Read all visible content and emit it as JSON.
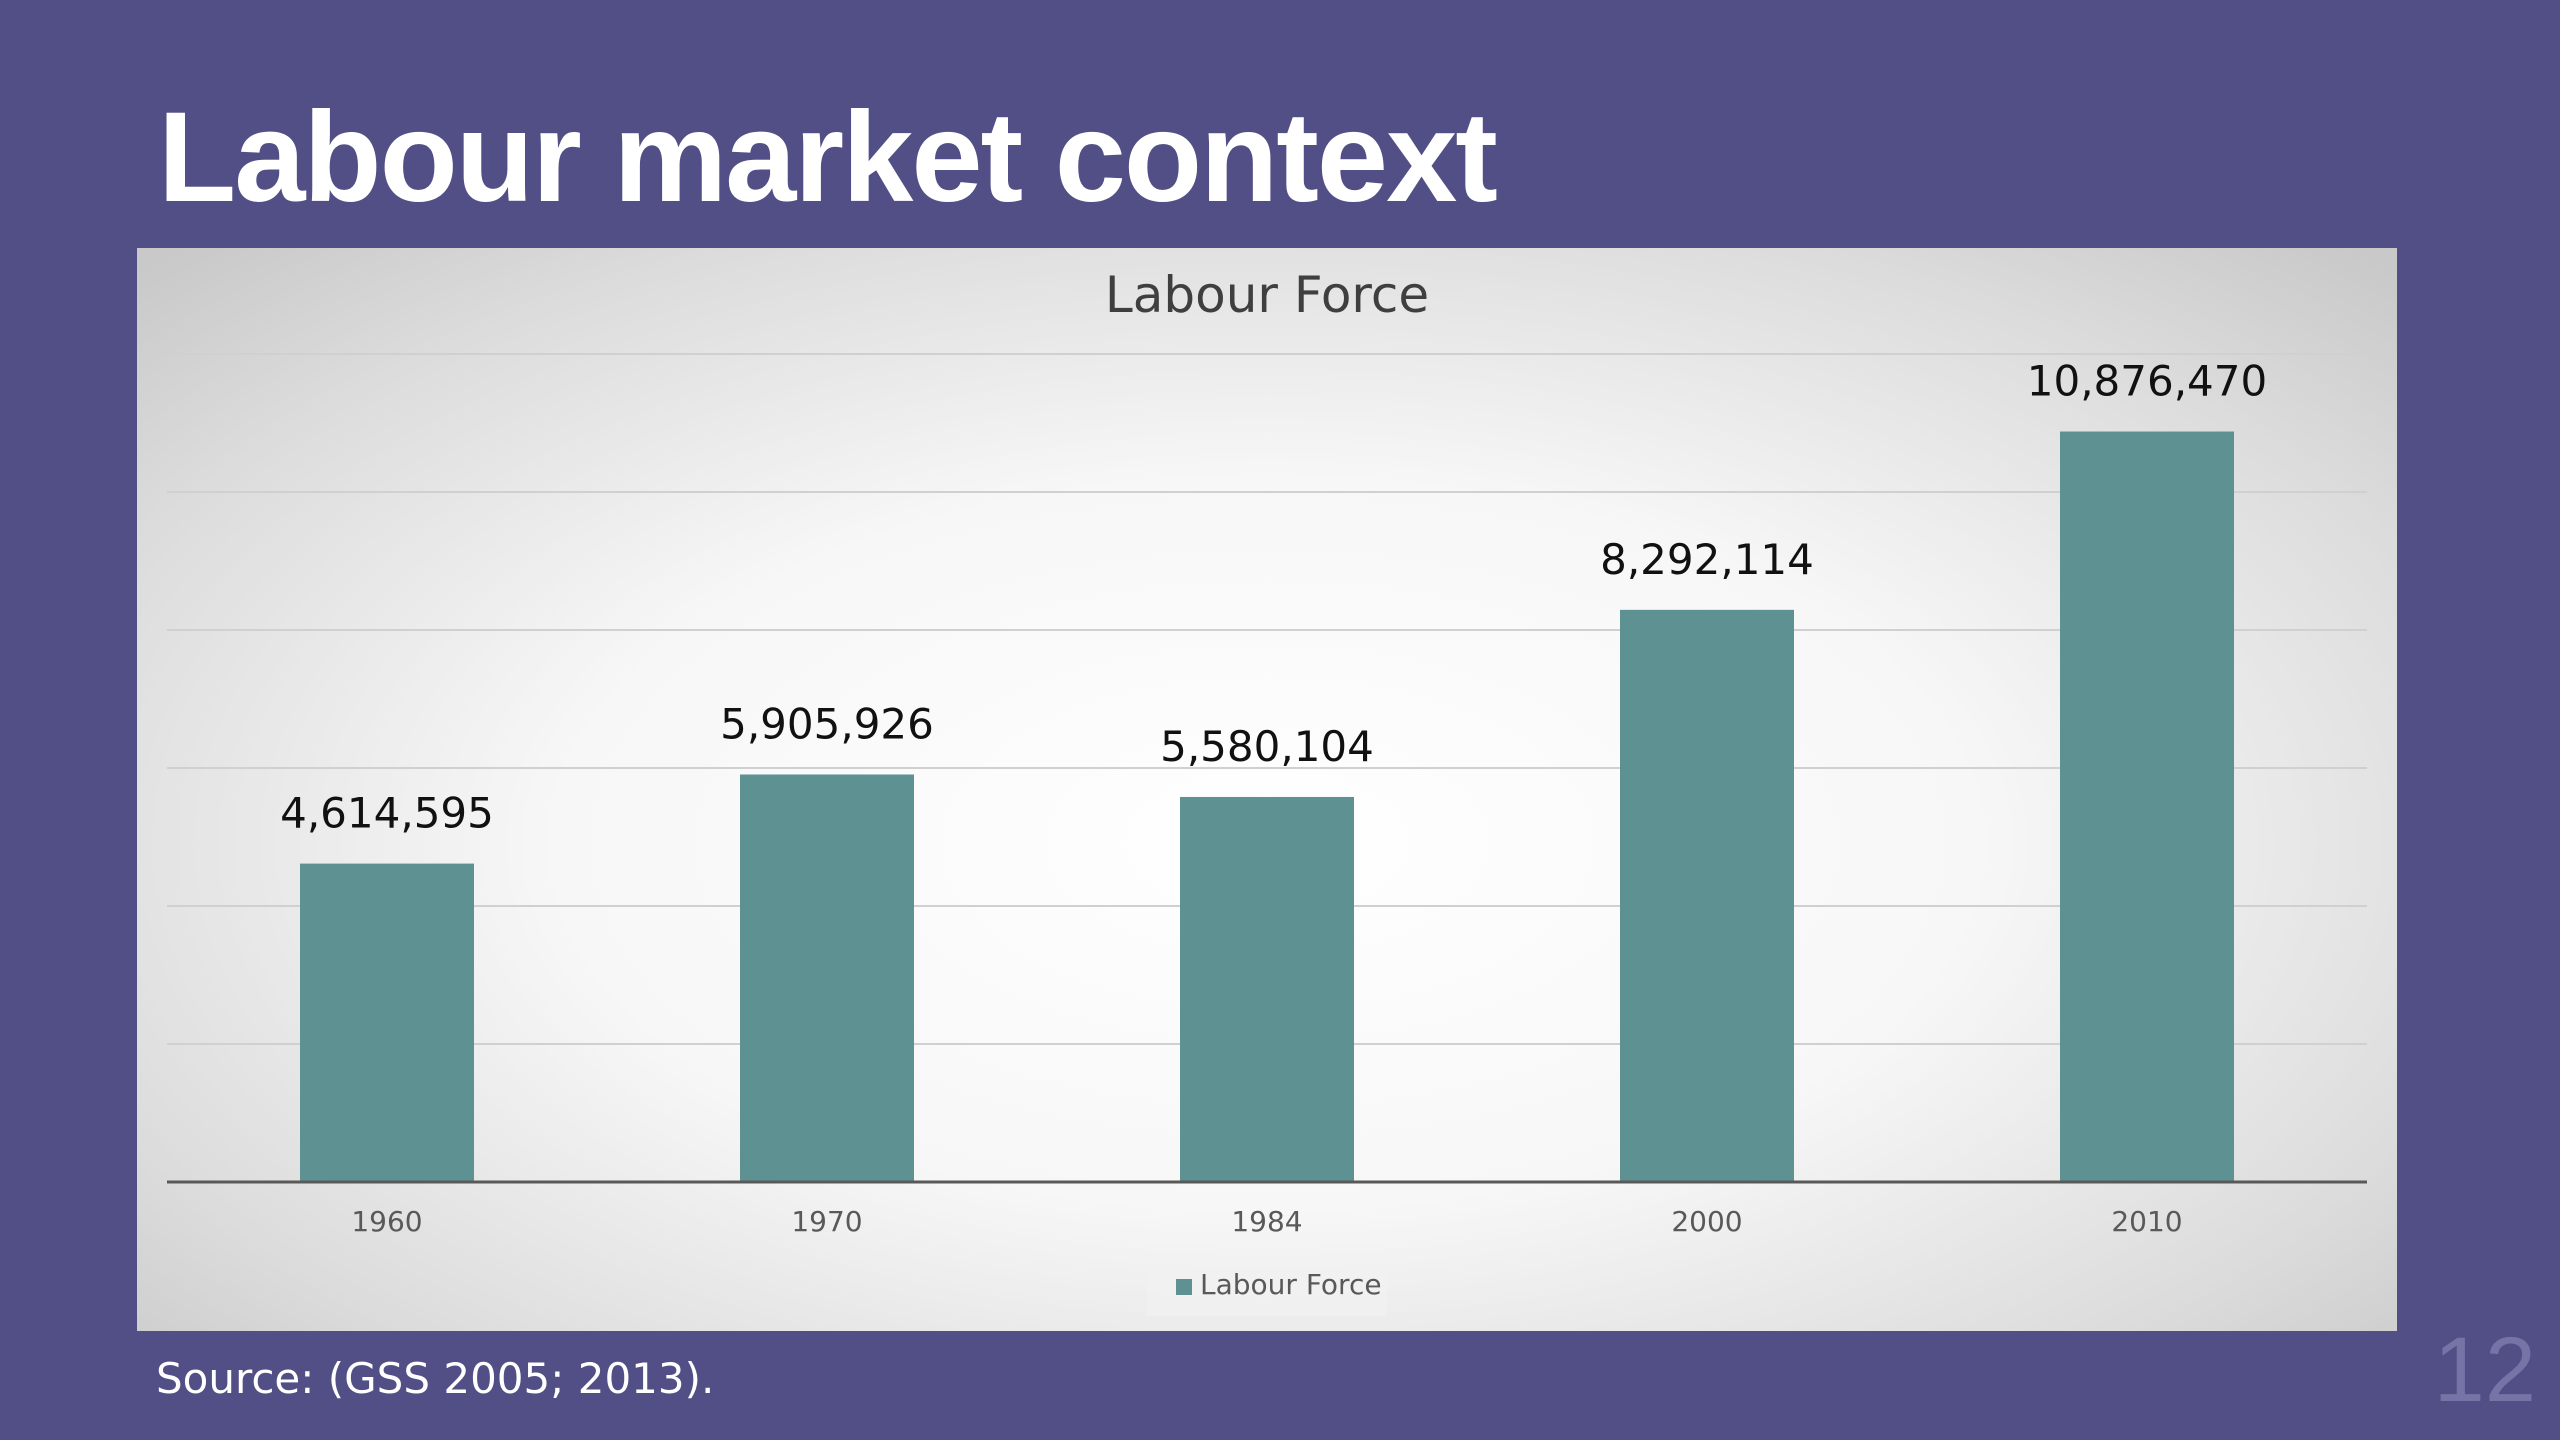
{
  "slide": {
    "title": "Labour market context",
    "source": "Source: (GSS 2005; 2013).",
    "page_number": "12"
  },
  "colors": {
    "background": "#524f86",
    "bar": "#5e9192"
  },
  "chart_data": {
    "type": "bar",
    "title": "Labour Force",
    "categories": [
      "1960",
      "1970",
      "1984",
      "2000",
      "2010"
    ],
    "series": [
      {
        "name": "Labour Force",
        "values": [
          4614595,
          5905926,
          5580104,
          8292114,
          10876470
        ],
        "labels": [
          "4,614,595",
          "5,905,926",
          "5,580,104",
          "8,292,114",
          "10,876,470"
        ]
      }
    ],
    "ylim": [
      0,
      12000000
    ],
    "y_gridline_step": 2000000,
    "grid": true,
    "y_axis_labels_shown": false,
    "legend": "bottom"
  }
}
